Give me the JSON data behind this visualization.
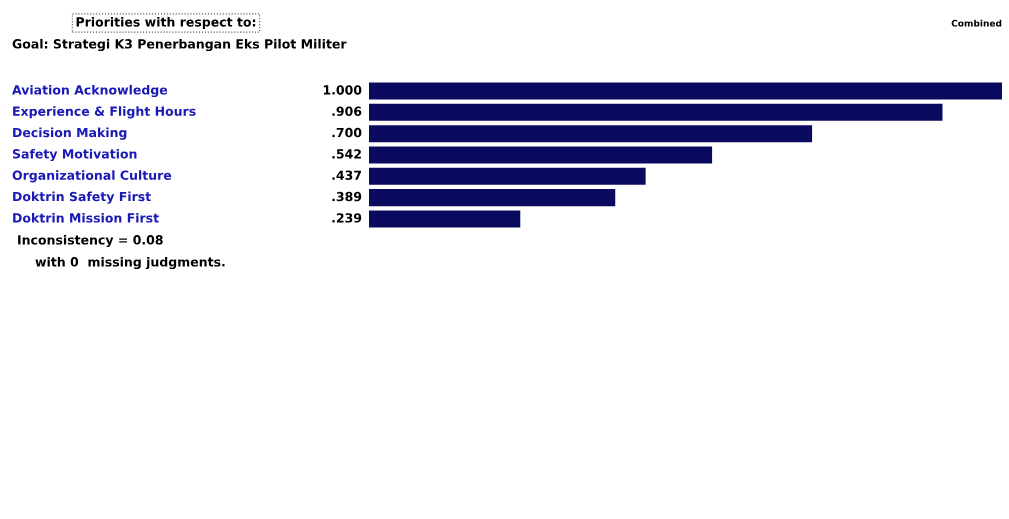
{
  "chart_data": {
    "type": "bar",
    "orientation": "horizontal",
    "title": "Priorities with respect to:",
    "subtitle": "Goal: Strategi K3 Penerbangan Eks Pilot Militer",
    "categories": [
      "Aviation Acknowledge",
      "Experience & Flight Hours",
      "Decision Making",
      "Safety Motivation",
      "Organizational Culture",
      "Doktrin Safety First",
      "Doktrin Mission First"
    ],
    "values": [
      1.0,
      0.906,
      0.7,
      0.542,
      0.437,
      0.389,
      0.239
    ],
    "value_labels": [
      "1.000",
      ".906",
      ".700",
      ".542",
      ".437",
      ".389",
      ".239"
    ],
    "color": "#0a0a5e",
    "xlim": [
      0,
      1.0
    ],
    "annotations": [
      "Combined",
      "Inconsistency = 0.08",
      "with 0  missing judgments."
    ]
  }
}
